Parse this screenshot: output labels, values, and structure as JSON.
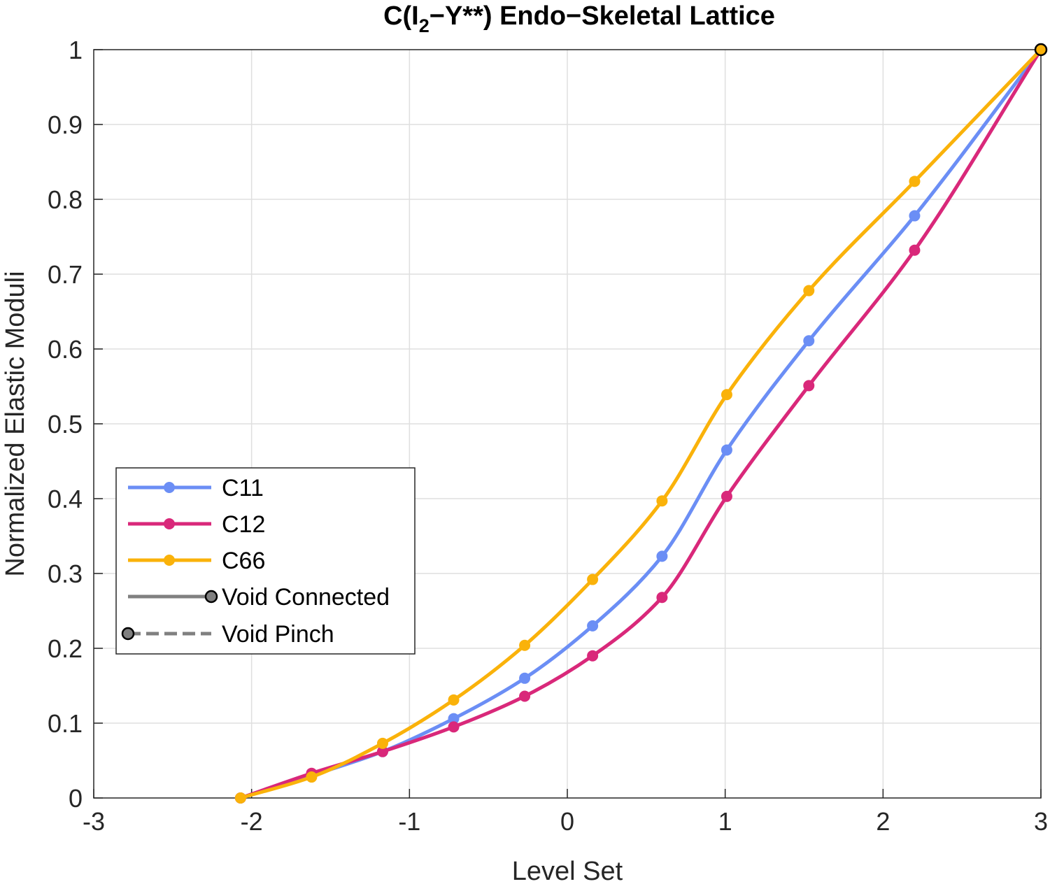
{
  "chart_data": {
    "type": "line",
    "title_prefix": "C(I",
    "title_sub": "2",
    "title_suffix": "−Y**) Endo−Skeletal Lattice",
    "xlabel": "Level Set",
    "ylabel": "Normalized Elastic Moduli",
    "xlim": [
      -3,
      3
    ],
    "ylim": [
      0,
      1
    ],
    "xticks": [
      -3,
      -2,
      -1,
      0,
      1,
      2,
      3
    ],
    "xtick_labels": [
      "-3",
      "-2",
      "-1",
      "0",
      "1",
      "2",
      "3"
    ],
    "yticks": [
      0,
      0.1,
      0.2,
      0.3,
      0.4,
      0.5,
      0.6,
      0.7,
      0.8,
      0.9,
      1
    ],
    "ytick_labels": [
      "0",
      "0.1",
      "0.2",
      "0.3",
      "0.4",
      "0.5",
      "0.6",
      "0.7",
      "0.8",
      "0.9",
      "1"
    ],
    "grid": true,
    "legend_position": "lower-left",
    "x": [
      -2.07,
      -1.62,
      -1.17,
      -0.72,
      -0.27,
      0.16,
      0.6,
      1.01,
      1.53,
      2.2,
      3.0
    ],
    "series": [
      {
        "name": "C11",
        "color": "#6B8EF5",
        "values": [
          0.0,
          0.03,
          0.062,
          0.106,
          0.16,
          0.23,
          0.323,
          0.465,
          0.611,
          0.778,
          1.0
        ]
      },
      {
        "name": "C12",
        "color": "#D9287A",
        "values": [
          0.0,
          0.033,
          0.062,
          0.095,
          0.136,
          0.19,
          0.268,
          0.403,
          0.551,
          0.732,
          1.0
        ]
      },
      {
        "name": "C66",
        "color": "#FAB20A",
        "values": [
          0.0,
          0.028,
          0.073,
          0.131,
          0.204,
          0.292,
          0.397,
          0.539,
          0.678,
          0.824,
          1.0
        ]
      }
    ],
    "void_markers": [
      {
        "name": "Void Connected",
        "style": "solid",
        "color": "#808080"
      },
      {
        "name": "Void Pinch",
        "style": "dashed",
        "color": "#808080"
      }
    ],
    "void_point": {
      "x": 3.0,
      "y": 1.0
    }
  }
}
